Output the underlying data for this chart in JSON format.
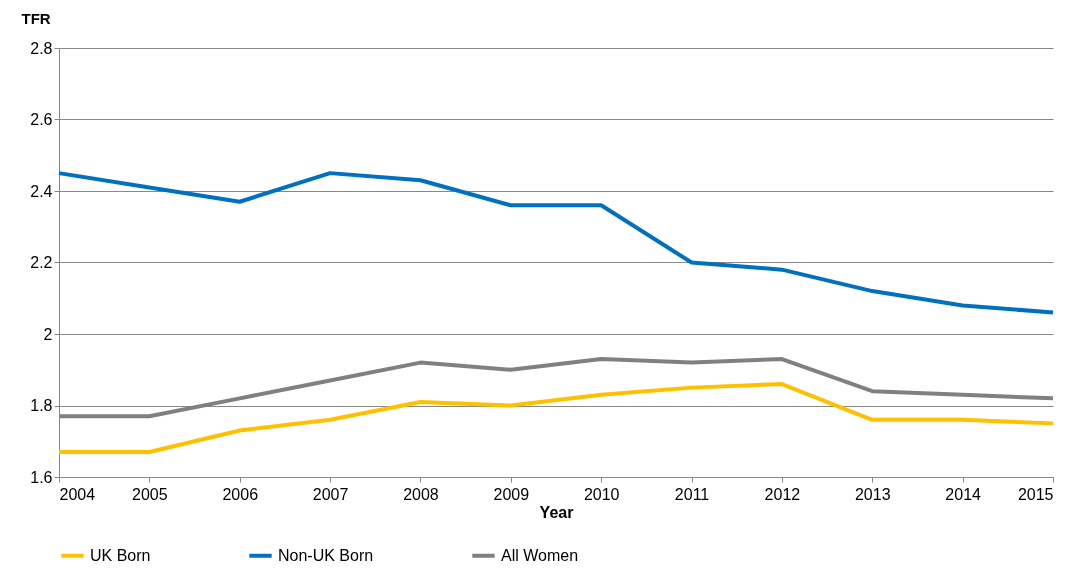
{
  "chart_data": {
    "type": "line",
    "xlabel": "Year",
    "ylabel": "TFR",
    "x": [
      2004,
      2005,
      2006,
      2007,
      2008,
      2009,
      2010,
      2011,
      2012,
      2013,
      2014,
      2015
    ],
    "series": [
      {
        "name": "UK Born",
        "color": "#ffc000",
        "values": [
          1.67,
          1.67,
          1.73,
          1.76,
          1.81,
          1.8,
          1.83,
          1.85,
          1.86,
          1.76,
          1.76,
          1.75
        ]
      },
      {
        "name": "Non-UK Born",
        "color": "#0070c0",
        "values": [
          2.45,
          2.41,
          2.37,
          2.45,
          2.43,
          2.36,
          2.36,
          2.2,
          2.18,
          2.12,
          2.08,
          2.06
        ]
      },
      {
        "name": "All Women",
        "color": "#808080",
        "values": [
          1.77,
          1.77,
          1.82,
          1.87,
          1.92,
          1.9,
          1.93,
          1.92,
          1.93,
          1.84,
          1.83,
          1.82
        ]
      }
    ],
    "xlim": [
      2004,
      2015
    ],
    "xticks": [
      2004,
      2005,
      2006,
      2007,
      2008,
      2009,
      2010,
      2011,
      2012,
      2013,
      2014,
      2015
    ],
    "ylim": [
      1.6,
      2.8
    ],
    "yticks": [
      1.6,
      1.8,
      2,
      2.2,
      2.4,
      2.6,
      2.8
    ],
    "grid": "y",
    "legend": "bottom",
    "marker": "none",
    "line_style": "solid"
  }
}
